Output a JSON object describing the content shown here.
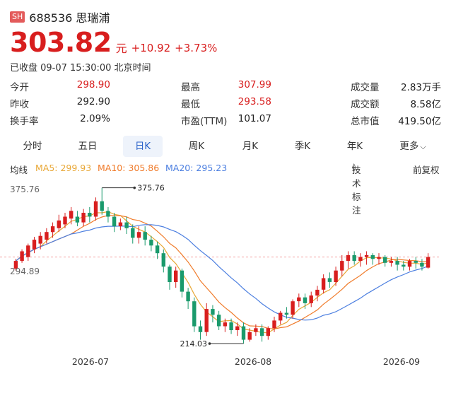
{
  "header": {
    "exchange_badge": "SH",
    "title": "688536 思瑞浦"
  },
  "quote": {
    "price": "303.82",
    "unit": "元",
    "change": "+10.92",
    "change_pct": "+3.73%",
    "status": "已收盘 09-07 15:30:00 北京时间"
  },
  "stats": [
    {
      "label": "今开",
      "value": "298.90",
      "color": "red"
    },
    {
      "label": "最高",
      "value": "307.99",
      "color": "red"
    },
    {
      "label": "成交量",
      "value": "2.83万手",
      "color": "dark"
    },
    {
      "label": "昨收",
      "value": "292.90",
      "color": "dark"
    },
    {
      "label": "最低",
      "value": "293.58",
      "color": "red"
    },
    {
      "label": "成交额",
      "value": "8.58亿",
      "color": "dark"
    },
    {
      "label": "换手率",
      "value": "2.09%",
      "color": "dark"
    },
    {
      "label": "市盈(TTM)",
      "value": "101.07",
      "color": "dark"
    },
    {
      "label": "总市值",
      "value": "419.50亿",
      "color": "dark"
    }
  ],
  "tabs": [
    "分时",
    "五日",
    "日K",
    "周K",
    "月K",
    "季K",
    "年K",
    "更多"
  ],
  "active_tab": "日K",
  "ma": {
    "label": "均线",
    "ma5": "MA5: 299.93",
    "ma10": "MA10: 305.86",
    "ma20": "MA20: 295.23",
    "tech_label": "技术标注",
    "adjust_label": "前复权"
  },
  "colors": {
    "up": "#d81e1e",
    "down": "#1a9a6c",
    "ma5": "#e8a736",
    "ma10": "#f07b2a",
    "ma20": "#4c7fe0",
    "active_tab": "#2a62c9"
  },
  "chart_data": {
    "type": "candlestick",
    "y_top_label": "375.76",
    "y_ref_label": "294.89",
    "high_annotation": "375.76",
    "low_annotation": "214.03",
    "ylim": [
      214.03,
      375.76
    ],
    "dates": [
      "2026-07",
      "2026-08",
      "2026-09"
    ],
    "candles": [
      [
        292,
        300,
        290,
        302
      ],
      [
        300,
        310,
        298,
        312
      ],
      [
        304,
        316,
        300,
        318
      ],
      [
        312,
        322,
        308,
        325
      ],
      [
        318,
        326,
        312,
        330
      ],
      [
        322,
        330,
        318,
        334
      ],
      [
        330,
        336,
        324,
        340
      ],
      [
        334,
        342,
        330,
        348
      ],
      [
        338,
        346,
        334,
        350
      ],
      [
        344,
        352,
        338,
        356
      ],
      [
        346,
        340,
        336,
        352
      ],
      [
        340,
        350,
        336,
        354
      ],
      [
        350,
        346,
        340,
        356
      ],
      [
        346,
        362,
        342,
        366
      ],
      [
        362,
        352,
        348,
        376
      ],
      [
        352,
        346,
        340,
        356
      ],
      [
        346,
        336,
        330,
        350
      ],
      [
        336,
        340,
        332,
        344
      ],
      [
        340,
        334,
        328,
        346
      ],
      [
        334,
        324,
        318,
        338
      ],
      [
        324,
        330,
        318,
        336
      ],
      [
        330,
        322,
        316,
        336
      ],
      [
        322,
        316,
        310,
        326
      ],
      [
        316,
        308,
        302,
        320
      ],
      [
        308,
        294,
        288,
        312
      ],
      [
        294,
        278,
        270,
        296
      ],
      [
        278,
        290,
        272,
        294
      ],
      [
        290,
        268,
        262,
        292
      ],
      [
        268,
        258,
        250,
        272
      ],
      [
        258,
        232,
        226,
        262
      ],
      [
        232,
        226,
        218,
        238
      ],
      [
        226,
        250,
        222,
        256
      ],
      [
        250,
        244,
        236,
        254
      ],
      [
        244,
        232,
        228,
        248
      ],
      [
        232,
        236,
        226,
        240
      ],
      [
        236,
        228,
        224,
        240
      ],
      [
        228,
        232,
        222,
        236
      ],
      [
        232,
        218,
        214,
        236
      ],
      [
        218,
        226,
        216,
        230
      ],
      [
        226,
        230,
        222,
        234
      ],
      [
        230,
        222,
        216,
        234
      ],
      [
        222,
        230,
        218,
        232
      ],
      [
        230,
        238,
        226,
        242
      ],
      [
        238,
        246,
        234,
        248
      ],
      [
        246,
        244,
        240,
        252
      ],
      [
        244,
        258,
        240,
        260
      ],
      [
        258,
        262,
        252,
        266
      ],
      [
        262,
        256,
        250,
        266
      ],
      [
        256,
        264,
        252,
        268
      ],
      [
        264,
        270,
        258,
        274
      ],
      [
        270,
        282,
        266,
        286
      ],
      [
        282,
        278,
        272,
        288
      ],
      [
        278,
        290,
        274,
        294
      ],
      [
        290,
        300,
        284,
        306
      ],
      [
        300,
        306,
        292,
        310
      ],
      [
        306,
        300,
        296,
        310
      ],
      [
        300,
        304,
        294,
        308
      ],
      [
        304,
        306,
        296,
        310
      ],
      [
        306,
        302,
        296,
        308
      ],
      [
        302,
        304,
        296,
        308
      ],
      [
        304,
        298,
        294,
        306
      ],
      [
        298,
        300,
        294,
        304
      ],
      [
        300,
        296,
        290,
        304
      ],
      [
        296,
        294,
        290,
        300
      ],
      [
        294,
        300,
        290,
        302
      ],
      [
        300,
        298,
        292,
        304
      ],
      [
        298,
        294,
        290,
        302
      ],
      [
        293,
        304,
        292,
        308
      ]
    ]
  }
}
